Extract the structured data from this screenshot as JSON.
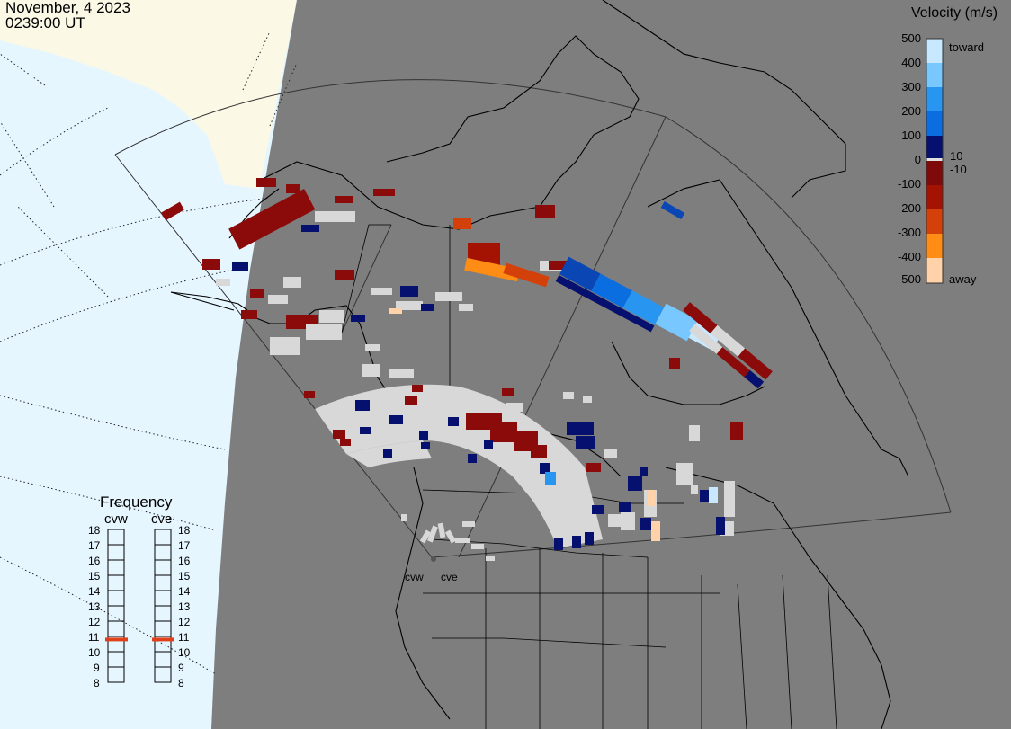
{
  "header": {
    "date": "November, 4 2023",
    "time": "0239:00 UT"
  },
  "colorbar": {
    "title": "Velocity (m/s)",
    "ticks": [
      "500",
      "400",
      "300",
      "200",
      "100",
      "0",
      "-100",
      "-200",
      "-300",
      "-400",
      "-500"
    ],
    "near_zero_labels": [
      "10",
      "-10"
    ],
    "toward_label": "toward",
    "away_label": "away",
    "colors": [
      "#c8e8ff",
      "#78c8ff",
      "#2896f0",
      "#0a6ee0",
      "#0a46b4",
      "#06106e",
      "#7e0a0a",
      "#a41202",
      "#d4400a",
      "#ff8c14",
      "#ffd2aa"
    ]
  },
  "frequency_panel": {
    "title": "Frequency",
    "radars": [
      {
        "name": "cvw",
        "selected_mhz": 10.8
      },
      {
        "name": "cve",
        "selected_mhz": 10.8
      }
    ],
    "scale": [
      "18",
      "17",
      "16",
      "15",
      "14",
      "13",
      "12",
      "11",
      "10",
      "9",
      "8"
    ],
    "marker_color": "#e0401a"
  },
  "map": {
    "ocean_color": "#e6f6ff",
    "land_light_color": "#fbf8e6",
    "shaded_color": "#7e7e7e",
    "site_labels": [
      "cvw",
      "cve"
    ]
  }
}
